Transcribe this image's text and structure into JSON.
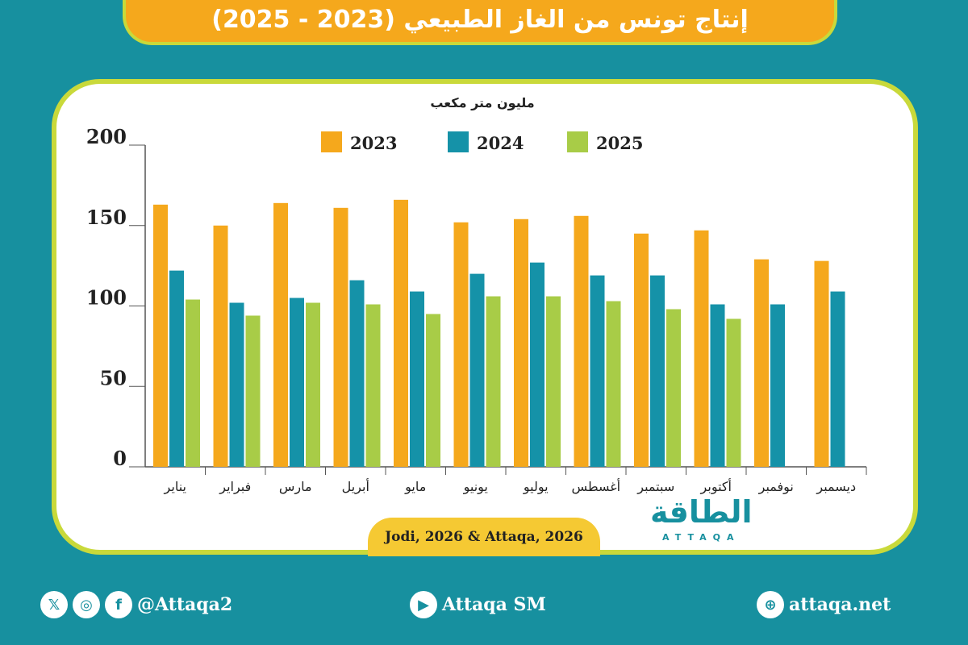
{
  "title": "إنتاج تونس من الغاز الطبيعي (2023 - 2025)",
  "source": "Jodi, 2026 & Attaqa, 2026",
  "logo": {
    "arabic": "الطاقة",
    "latin": "ATTAQA"
  },
  "footer": {
    "social_handle": "@Attaqa2",
    "youtube": "Attaqa SM",
    "website": "attaqa.net"
  },
  "chart_data": {
    "type": "bar",
    "ylabel": "مليون متر مكعب",
    "ylim": [
      0,
      200
    ],
    "yticks": [
      0,
      50,
      100,
      150,
      200
    ],
    "grid": false,
    "legend_position": "top",
    "categories": [
      "يناير",
      "فبراير",
      "مارس",
      "أبريل",
      "مايو",
      "يونيو",
      "يوليو",
      "أغسطس",
      "سبتمبر",
      "أكتوبر",
      "نوفمبر",
      "ديسمبر"
    ],
    "series": [
      {
        "name": "2023",
        "color": "#f5a81c",
        "values": [
          163,
          150,
          164,
          161,
          166,
          152,
          154,
          156,
          145,
          147,
          129,
          128
        ]
      },
      {
        "name": "2024",
        "color": "#1592a8",
        "values": [
          122,
          102,
          105,
          116,
          109,
          120,
          127,
          119,
          119,
          101,
          101,
          109
        ]
      },
      {
        "name": "2025",
        "color": "#a8cc47",
        "values": [
          104,
          94,
          102,
          101,
          95,
          106,
          106,
          103,
          98,
          92,
          null,
          null
        ]
      }
    ]
  }
}
